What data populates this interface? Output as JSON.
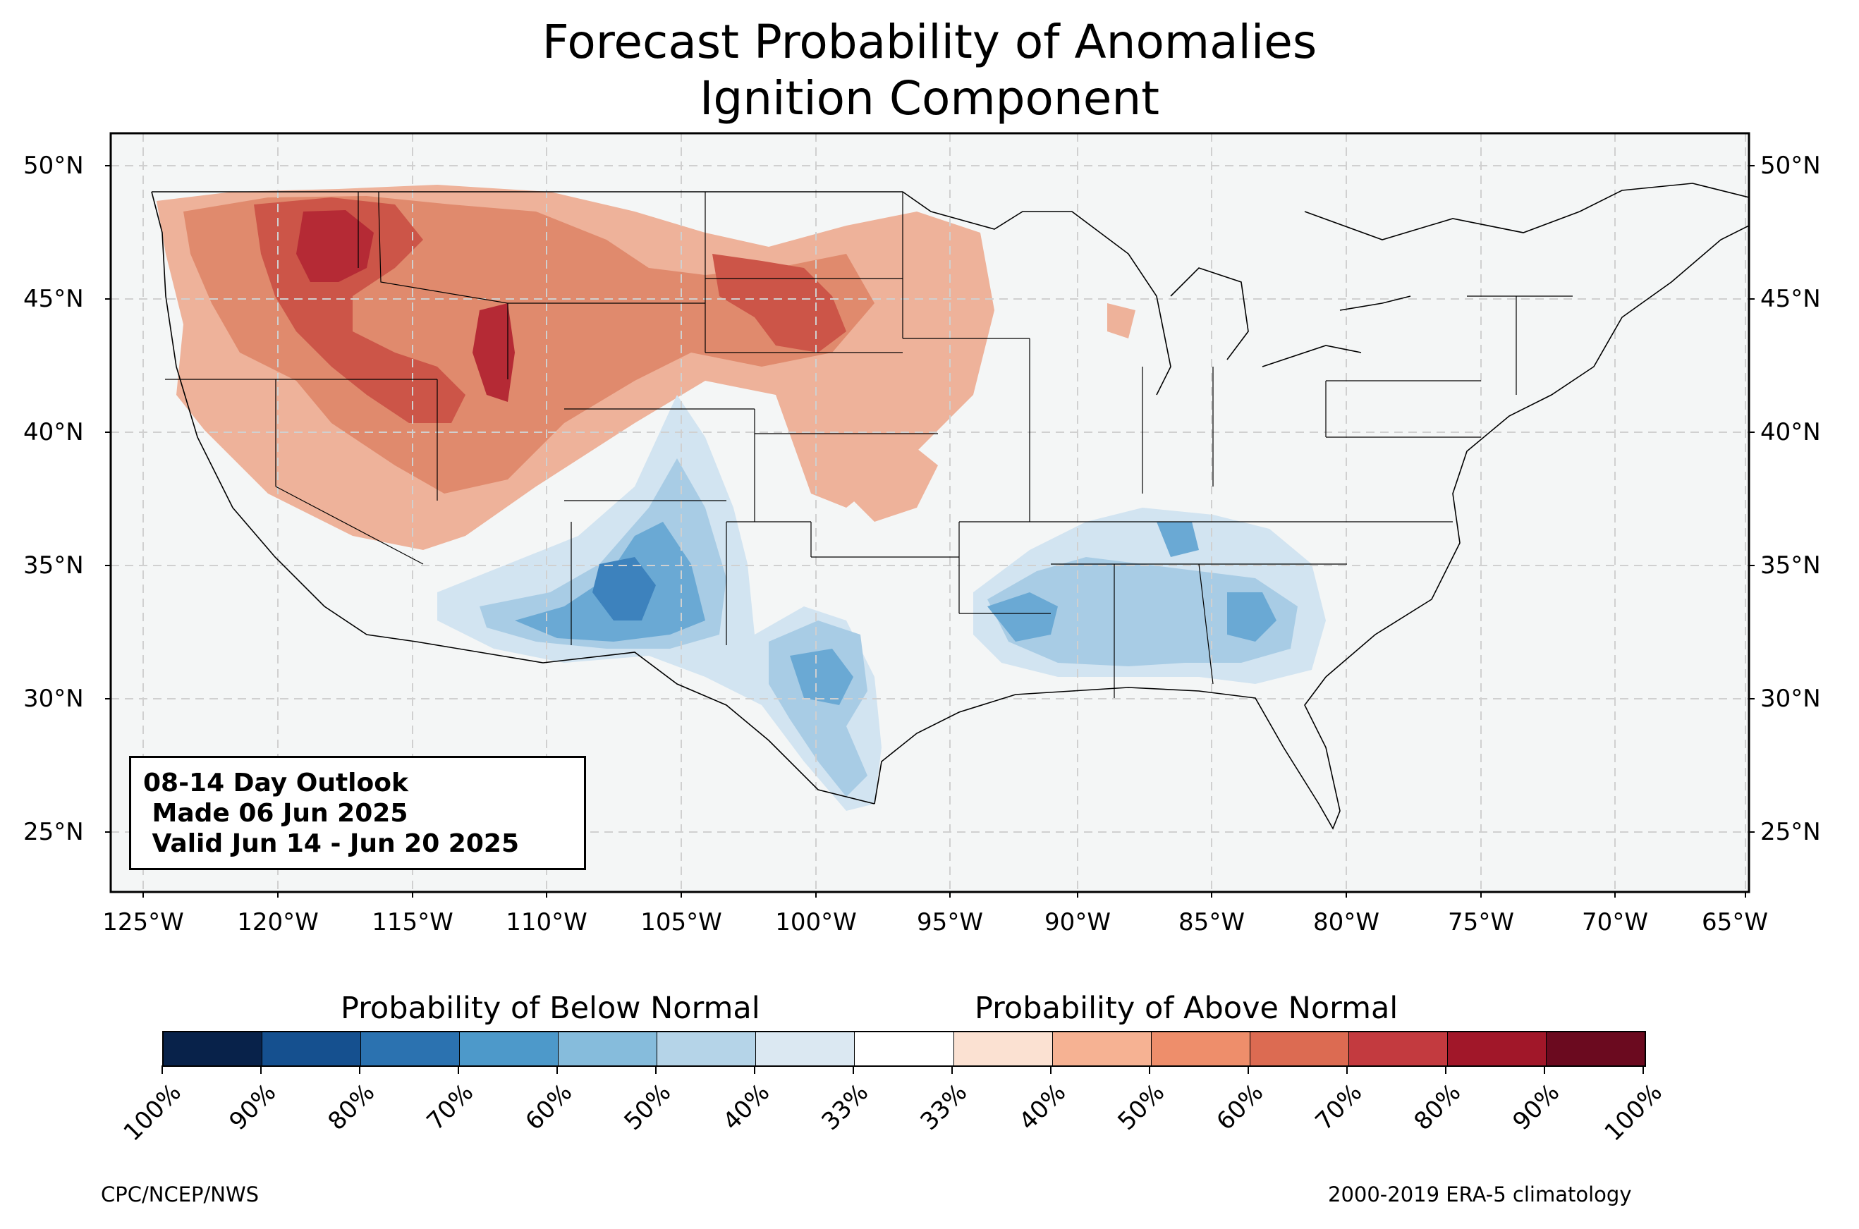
{
  "title": {
    "line1": "Forecast Probability of Anomalies",
    "line2": "Ignition Component"
  },
  "lat_labels": [
    "50°N",
    "45°N",
    "40°N",
    "35°N",
    "30°N",
    "25°N"
  ],
  "lon_labels": [
    "125°W",
    "120°W",
    "115°W",
    "110°W",
    "105°W",
    "100°W",
    "95°W",
    "90°W",
    "85°W",
    "80°W",
    "75°W",
    "70°W",
    "65°W"
  ],
  "outlook": {
    "line1": "08-14 Day Outlook",
    "line2": " Made 06 Jun 2025",
    "line3": " Valid Jun 14 - Jun 20 2025"
  },
  "colorbar": {
    "below_label": "Probability of Below Normal",
    "above_label": "Probability of Above Normal",
    "tick_labels": [
      "100%",
      "90%",
      "80%",
      "70%",
      "60%",
      "50%",
      "40%",
      "33%",
      "33%",
      "40%",
      "50%",
      "60%",
      "70%",
      "80%",
      "90%",
      "100%"
    ],
    "colors": [
      "#08224a",
      "#15508f",
      "#2b72b0",
      "#4d99ca",
      "#86bcdc",
      "#b5d4e8",
      "#dbe8f2",
      "#ffffff",
      "#fbe1d2",
      "#f6b293",
      "#ee8e6b",
      "#dc6b52",
      "#c33a3f",
      "#a11729",
      "#6b0a1f"
    ]
  },
  "map_colors": {
    "background": "#f4f6f6",
    "above_50": "#eeb29a",
    "above_60": "#e08a6d",
    "above_70": "#cc5548",
    "above_80": "#b52a35",
    "below_40": "#d2e4f1",
    "below_50": "#a8cce5",
    "below_60": "#6aa9d4",
    "below_70": "#3d82bd"
  },
  "footer": {
    "left": "CPC/NCEP/NWS",
    "right": "2000-2019 ERA-5 climatology"
  }
}
